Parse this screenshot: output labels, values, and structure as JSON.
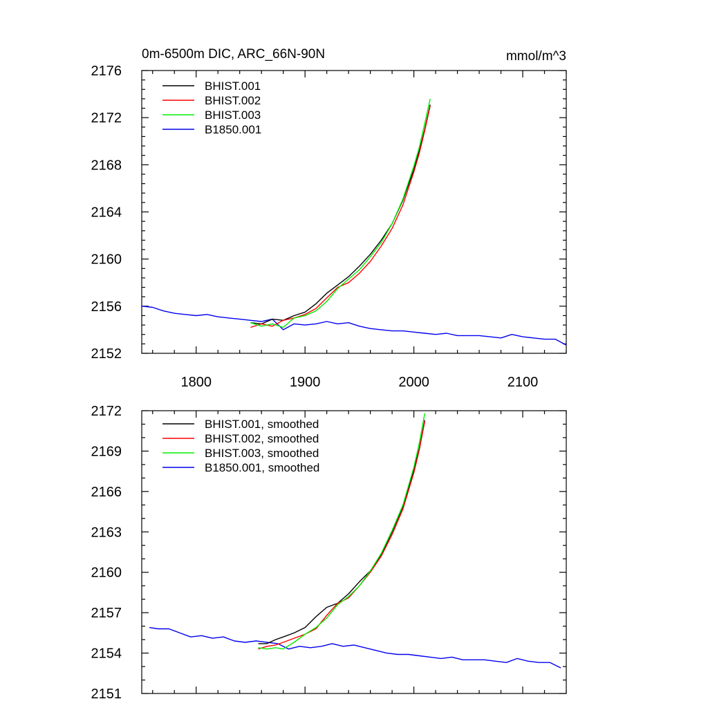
{
  "chart_data": [
    {
      "type": "line",
      "title_left": "0m-6500m DIC, ARC_66N-90N",
      "title_right": "mmol/m^3",
      "xlim": [
        1750,
        2140
      ],
      "ylim": [
        2152,
        2176
      ],
      "x_ticks": [
        1800,
        1900,
        2000,
        2100
      ],
      "x_tick_labels": [
        "1800",
        "1900",
        "2000",
        "2100"
      ],
      "y_ticks": [
        2152,
        2156,
        2160,
        2164,
        2168,
        2172,
        2176
      ],
      "y_tick_labels": [
        "2152",
        "2156",
        "2160",
        "2164",
        "2168",
        "2172",
        "2176"
      ],
      "legend_position": "top-left",
      "series": [
        {
          "name": "BHIST.001",
          "color": "#000000",
          "x": [
            1850,
            1860,
            1870,
            1880,
            1890,
            1900,
            1910,
            1920,
            1930,
            1940,
            1950,
            1960,
            1970,
            1980,
            1990,
            2000,
            2005,
            2010,
            2015
          ],
          "y": [
            2154.6,
            2154.5,
            2154.9,
            2154.8,
            2155.2,
            2155.5,
            2156.2,
            2157.1,
            2157.8,
            2158.5,
            2159.4,
            2160.4,
            2161.6,
            2163.0,
            2165.0,
            2167.6,
            2169.2,
            2171.0,
            2173.1
          ]
        },
        {
          "name": "BHIST.002",
          "color": "#ff0000",
          "x": [
            1850,
            1860,
            1870,
            1880,
            1890,
            1900,
            1910,
            1920,
            1930,
            1940,
            1950,
            1960,
            1970,
            1980,
            1990,
            2000,
            2005,
            2010,
            2015
          ],
          "y": [
            2154.2,
            2154.5,
            2154.3,
            2154.8,
            2155.0,
            2155.3,
            2155.8,
            2156.7,
            2157.6,
            2158.0,
            2158.8,
            2159.8,
            2161.1,
            2162.6,
            2164.6,
            2167.4,
            2169.0,
            2170.9,
            2173.0
          ]
        },
        {
          "name": "BHIST.003",
          "color": "#00ee00",
          "x": [
            1850,
            1860,
            1870,
            1880,
            1890,
            1900,
            1910,
            1920,
            1930,
            1940,
            1950,
            1960,
            1970,
            1980,
            1990,
            2000,
            2005,
            2010,
            2015
          ],
          "y": [
            2154.6,
            2154.3,
            2154.5,
            2154.2,
            2155.0,
            2155.2,
            2155.6,
            2156.4,
            2157.5,
            2158.3,
            2159.1,
            2160.2,
            2161.4,
            2163.0,
            2165.1,
            2167.9,
            2169.5,
            2171.5,
            2173.6
          ]
        },
        {
          "name": "B1850.001",
          "color": "#0000ee",
          "x": [
            1750,
            1760,
            1770,
            1780,
            1790,
            1800,
            1810,
            1820,
            1830,
            1840,
            1850,
            1860,
            1870,
            1880,
            1890,
            1900,
            1910,
            1920,
            1930,
            1940,
            1950,
            1960,
            1970,
            1980,
            1990,
            2000,
            2010,
            2020,
            2030,
            2040,
            2050,
            2060,
            2070,
            2080,
            2090,
            2100,
            2110,
            2120,
            2130,
            2140
          ],
          "y": [
            2156.0,
            2155.9,
            2155.6,
            2155.4,
            2155.3,
            2155.2,
            2155.3,
            2155.1,
            2155.0,
            2154.9,
            2154.8,
            2154.7,
            2154.9,
            2154.0,
            2154.5,
            2154.4,
            2154.5,
            2154.7,
            2154.5,
            2154.6,
            2154.3,
            2154.1,
            2154.0,
            2153.9,
            2153.9,
            2153.8,
            2153.7,
            2153.6,
            2153.7,
            2153.5,
            2153.5,
            2153.5,
            2153.4,
            2153.3,
            2153.6,
            2153.4,
            2153.3,
            2153.2,
            2153.2,
            2152.7
          ]
        }
      ]
    },
    {
      "type": "line",
      "xlim": [
        1750,
        2140
      ],
      "ylim": [
        2151,
        2172
      ],
      "x_ticks": [
        1800,
        1900,
        2000,
        2100
      ],
      "y_ticks": [
        2151,
        2154,
        2157,
        2160,
        2163,
        2166,
        2169,
        2172
      ],
      "y_tick_labels": [
        "2151",
        "2154",
        "2157",
        "2160",
        "2163",
        "2166",
        "2169",
        "2172"
      ],
      "legend_position": "top-left",
      "series": [
        {
          "name": "BHIST.001, smoothed",
          "color": "#000000",
          "x": [
            1857,
            1865,
            1873,
            1880,
            1890,
            1900,
            1910,
            1920,
            1930,
            1940,
            1950,
            1960,
            1970,
            1980,
            1990,
            2000,
            2005,
            2010
          ],
          "y": [
            2154.7,
            2154.7,
            2155.0,
            2155.2,
            2155.5,
            2155.9,
            2156.7,
            2157.4,
            2157.7,
            2158.4,
            2159.3,
            2160.1,
            2161.3,
            2163.0,
            2164.9,
            2167.6,
            2169.2,
            2171.3
          ]
        },
        {
          "name": "BHIST.002, smoothed",
          "color": "#ff0000",
          "x": [
            1857,
            1865,
            1873,
            1880,
            1890,
            1900,
            1910,
            1920,
            1930,
            1940,
            1950,
            1960,
            1970,
            1980,
            1990,
            2000,
            2005,
            2010
          ],
          "y": [
            2154.3,
            2154.5,
            2154.6,
            2154.8,
            2155.1,
            2155.4,
            2155.8,
            2156.8,
            2157.7,
            2158.1,
            2159.0,
            2160.0,
            2161.2,
            2162.8,
            2164.7,
            2167.4,
            2169.1,
            2171.2
          ]
        },
        {
          "name": "BHIST.003, smoothed",
          "color": "#00ee00",
          "x": [
            1857,
            1865,
            1873,
            1880,
            1890,
            1900,
            1910,
            1920,
            1930,
            1940,
            1950,
            1960,
            1970,
            1980,
            1990,
            2000,
            2005,
            2010
          ],
          "y": [
            2154.4,
            2154.3,
            2154.4,
            2154.3,
            2154.8,
            2155.4,
            2155.9,
            2156.6,
            2157.6,
            2158.2,
            2159.0,
            2160.1,
            2161.4,
            2163.1,
            2165.0,
            2167.8,
            2169.6,
            2171.8
          ]
        },
        {
          "name": "B1850.001, smoothed",
          "color": "#0000ee",
          "x": [
            1757,
            1765,
            1775,
            1785,
            1795,
            1805,
            1815,
            1825,
            1835,
            1845,
            1855,
            1865,
            1875,
            1885,
            1895,
            1905,
            1915,
            1925,
            1935,
            1945,
            1955,
            1965,
            1975,
            1985,
            1995,
            2005,
            2015,
            2025,
            2035,
            2045,
            2055,
            2065,
            2075,
            2085,
            2095,
            2105,
            2115,
            2125,
            2135
          ],
          "y": [
            2155.9,
            2155.8,
            2155.8,
            2155.5,
            2155.2,
            2155.3,
            2155.1,
            2155.2,
            2154.9,
            2154.8,
            2154.9,
            2154.8,
            2154.7,
            2154.3,
            2154.5,
            2154.4,
            2154.5,
            2154.7,
            2154.5,
            2154.6,
            2154.4,
            2154.2,
            2154.0,
            2153.9,
            2153.9,
            2153.8,
            2153.7,
            2153.6,
            2153.7,
            2153.5,
            2153.5,
            2153.5,
            2153.4,
            2153.3,
            2153.6,
            2153.4,
            2153.3,
            2153.3,
            2152.9
          ]
        }
      ]
    }
  ]
}
